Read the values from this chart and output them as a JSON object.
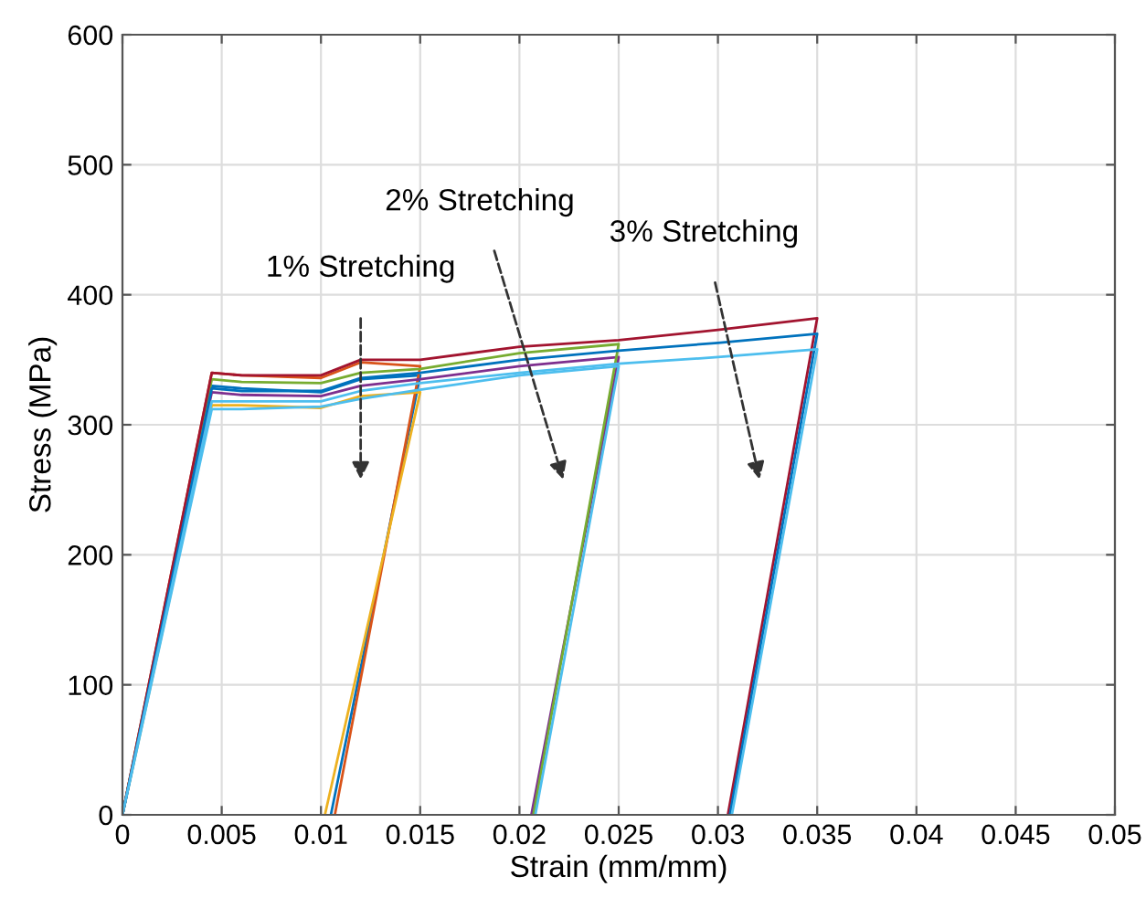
{
  "chart_data": {
    "type": "line",
    "xlabel": "Strain (mm/mm)",
    "ylabel": "Stress (MPa)",
    "xlim": [
      0,
      0.05
    ],
    "ylim": [
      0,
      600
    ],
    "xticks": [
      0,
      0.005,
      0.01,
      0.015,
      0.02,
      0.025,
      0.03,
      0.035,
      0.04,
      0.045,
      0.05
    ],
    "yticks": [
      0,
      100,
      200,
      300,
      400,
      500,
      600
    ],
    "grid": true,
    "line_style": "solid",
    "series": [
      {
        "color": "#0072bd",
        "x": [
          0,
          0.0045,
          0.006,
          0.01,
          0.012,
          0.015,
          0.0105
        ],
        "values": [
          0,
          330,
          328,
          325,
          335,
          338,
          0
        ]
      },
      {
        "color": "#d95319",
        "x": [
          0,
          0.0045,
          0.006,
          0.01,
          0.012,
          0.015,
          0.0107
        ],
        "values": [
          0,
          340,
          338,
          336,
          348,
          345,
          0
        ]
      },
      {
        "color": "#edb120",
        "x": [
          0,
          0.0045,
          0.006,
          0.01,
          0.012,
          0.015,
          0.0102
        ],
        "values": [
          0,
          315,
          315,
          313,
          322,
          325,
          0
        ]
      },
      {
        "color": "#7e2f8e",
        "x": [
          0,
          0.0045,
          0.006,
          0.01,
          0.012,
          0.015,
          0.02,
          0.025,
          0.0206
        ],
        "values": [
          0,
          325,
          323,
          322,
          330,
          335,
          345,
          352,
          0
        ]
      },
      {
        "color": "#77ac30",
        "x": [
          0,
          0.0045,
          0.006,
          0.01,
          0.012,
          0.015,
          0.02,
          0.025,
          0.0207
        ],
        "values": [
          0,
          335,
          333,
          332,
          340,
          343,
          355,
          362,
          0
        ]
      },
      {
        "color": "#4dbeee",
        "x": [
          0,
          0.0045,
          0.006,
          0.01,
          0.012,
          0.015,
          0.02,
          0.025,
          0.0208
        ],
        "values": [
          0,
          312,
          312,
          314,
          320,
          327,
          338,
          345,
          0
        ]
      },
      {
        "color": "#a2142f",
        "x": [
          0,
          0.0045,
          0.006,
          0.01,
          0.012,
          0.015,
          0.02,
          0.025,
          0.03,
          0.035,
          0.0305
        ],
        "values": [
          0,
          340,
          338,
          338,
          350,
          350,
          360,
          365,
          373,
          382,
          0
        ]
      },
      {
        "color": "#0072bd",
        "x": [
          0,
          0.0045,
          0.006,
          0.01,
          0.012,
          0.015,
          0.02,
          0.025,
          0.03,
          0.035,
          0.0306
        ],
        "values": [
          0,
          328,
          326,
          326,
          336,
          340,
          350,
          357,
          363,
          370,
          0
        ]
      },
      {
        "color": "#4dbeee",
        "x": [
          0,
          0.0045,
          0.006,
          0.01,
          0.012,
          0.015,
          0.02,
          0.025,
          0.03,
          0.035,
          0.0307
        ],
        "values": [
          0,
          318,
          318,
          318,
          326,
          332,
          340,
          347,
          352,
          358,
          0
        ]
      }
    ],
    "annotations": [
      "1% Stretching",
      "2% Stretching",
      "3% Stretching"
    ]
  }
}
